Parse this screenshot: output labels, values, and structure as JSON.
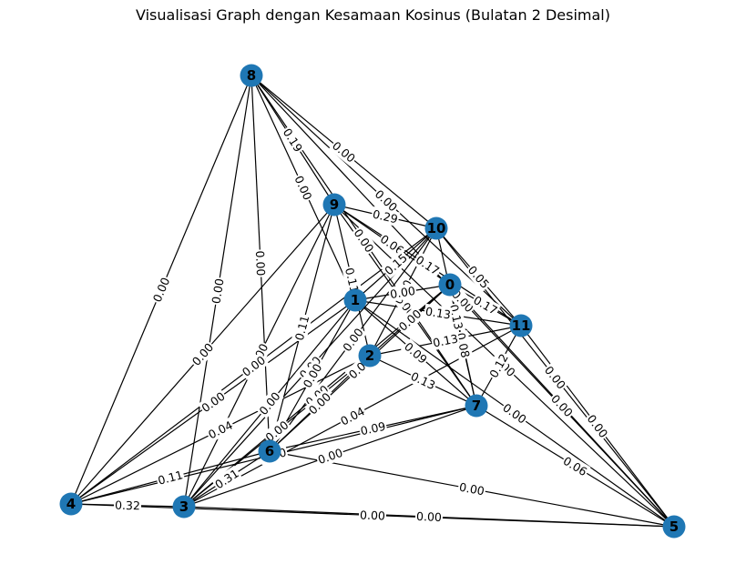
{
  "title": "Visualisasi Graph dengan Kesamaan Kosinus (Bulatan 2 Desimal)",
  "colors": {
    "node": "#1f77b4",
    "edge": "#000000",
    "background": "#ffffff"
  },
  "nodes": [
    {
      "id": "0"
    },
    {
      "id": "1"
    },
    {
      "id": "2"
    },
    {
      "id": "3"
    },
    {
      "id": "4"
    },
    {
      "id": "5"
    },
    {
      "id": "6"
    },
    {
      "id": "7"
    },
    {
      "id": "8"
    },
    {
      "id": "9"
    },
    {
      "id": "10"
    },
    {
      "id": "11"
    }
  ],
  "edges": [
    {
      "s": "8",
      "t": "10",
      "w": "0.00"
    },
    {
      "s": "8",
      "t": "11",
      "w": "0.00"
    },
    {
      "s": "8",
      "t": "5",
      "w": "0.00"
    },
    {
      "s": "8",
      "t": "9",
      "w": "0.19"
    },
    {
      "s": "8",
      "t": "1",
      "w": "0.00"
    },
    {
      "s": "8",
      "t": "4",
      "w": "0.00"
    },
    {
      "s": "8",
      "t": "3",
      "w": "0.00"
    },
    {
      "s": "8",
      "t": "6",
      "w": "0.00"
    },
    {
      "s": "8",
      "t": "7",
      "w": "0.00"
    },
    {
      "s": "9",
      "t": "10",
      "w": "0.29"
    },
    {
      "s": "9",
      "t": "0",
      "w": "0.06"
    },
    {
      "s": "9",
      "t": "11",
      "w": "0.17"
    },
    {
      "s": "9",
      "t": "2",
      "w": "0.11"
    },
    {
      "s": "9",
      "t": "7",
      "w": "0.00"
    },
    {
      "s": "9",
      "t": "6",
      "w": "0.11"
    },
    {
      "s": "9",
      "t": "3",
      "w": "0.00"
    },
    {
      "s": "9",
      "t": "4",
      "w": "0.00"
    },
    {
      "s": "9",
      "t": "5",
      "w": "0.00"
    },
    {
      "s": "10",
      "t": "11",
      "w": "0.05"
    },
    {
      "s": "10",
      "t": "1",
      "w": "0.15"
    },
    {
      "s": "10",
      "t": "7",
      "w": "0.13"
    },
    {
      "s": "10",
      "t": "5",
      "w": "0.00"
    },
    {
      "s": "10",
      "t": "2",
      "w": "0.00"
    },
    {
      "s": "10",
      "t": "3",
      "w": "0.00"
    },
    {
      "s": "10",
      "t": "6",
      "w": "0.00"
    },
    {
      "s": "10",
      "t": "4",
      "w": "0.00"
    },
    {
      "s": "0",
      "t": "11",
      "w": "0.17"
    },
    {
      "s": "0",
      "t": "7",
      "w": "0.08"
    },
    {
      "s": "0",
      "t": "5",
      "w": "0.00"
    },
    {
      "s": "0",
      "t": "2",
      "w": "0.00"
    },
    {
      "s": "0",
      "t": "6",
      "w": "0.05"
    },
    {
      "s": "0",
      "t": "3",
      "w": "0.00"
    },
    {
      "s": "1",
      "t": "0",
      "w": "0.00"
    },
    {
      "s": "1",
      "t": "11",
      "w": "0.13"
    },
    {
      "s": "1",
      "t": "7",
      "w": "0.09"
    },
    {
      "s": "1",
      "t": "5",
      "w": "0.00"
    },
    {
      "s": "1",
      "t": "4",
      "w": "0.00"
    },
    {
      "s": "1",
      "t": "3",
      "w": "0.00"
    },
    {
      "s": "1",
      "t": "6",
      "w": "0.00"
    },
    {
      "s": "11",
      "t": "7",
      "w": "0.12"
    },
    {
      "s": "11",
      "t": "5",
      "w": "0.00"
    },
    {
      "s": "11",
      "t": "2",
      "w": "0.13"
    },
    {
      "s": "11",
      "t": "3",
      "w": "0.04"
    },
    {
      "s": "2",
      "t": "7",
      "w": "0.13"
    },
    {
      "s": "2",
      "t": "6",
      "w": "0.00"
    },
    {
      "s": "2",
      "t": "4",
      "w": "0.04"
    },
    {
      "s": "2",
      "t": "3",
      "w": "0.00"
    },
    {
      "s": "7",
      "t": "5",
      "w": "0.06"
    },
    {
      "s": "7",
      "t": "6",
      "w": "0.09"
    },
    {
      "s": "7",
      "t": "3",
      "w": "0.00"
    },
    {
      "s": "7",
      "t": "4",
      "w": "0.00"
    },
    {
      "s": "6",
      "t": "4",
      "w": "0.11"
    },
    {
      "s": "6",
      "t": "3",
      "w": "0.31"
    },
    {
      "s": "6",
      "t": "5",
      "w": "0.00"
    },
    {
      "s": "4",
      "t": "3",
      "w": "0.32"
    },
    {
      "s": "4",
      "t": "5",
      "w": "0.00"
    },
    {
      "s": "3",
      "t": "5",
      "w": "0.00"
    }
  ]
}
